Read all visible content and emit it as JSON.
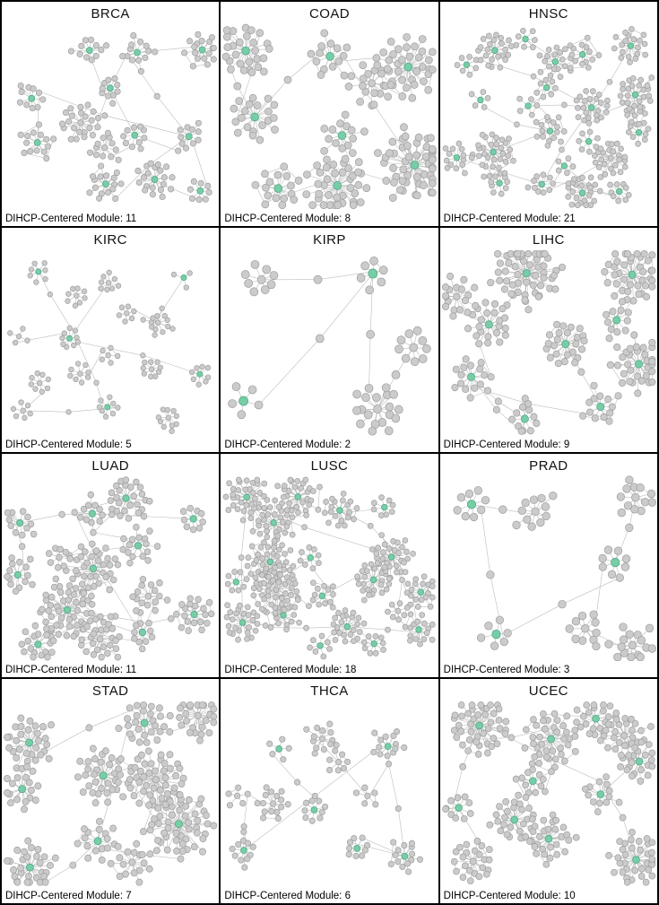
{
  "figure": {
    "caption_label": "DIHCP-Centered Module:",
    "colors": {
      "background": "#ffffff",
      "panel_border": "#000000",
      "node_fill": "#cbcbcb",
      "node_stroke": "#9e9e9e",
      "hub_fill": "#77cda6",
      "hub_stroke": "#4aa583",
      "edge": "#bdbdbd"
    },
    "panels": [
      {
        "title": "BRCA",
        "module_count": 11,
        "net": {
          "nodes": 185,
          "clusters": 13,
          "r": 3.2,
          "density": 0.45,
          "seed": 101
        }
      },
      {
        "title": "COAD",
        "module_count": 8,
        "net": {
          "nodes": 240,
          "clusters": 9,
          "r": 4.0,
          "density": 0.6,
          "seed": 202
        }
      },
      {
        "title": "HNSC",
        "module_count": 21,
        "net": {
          "nodes": 340,
          "clusters": 23,
          "r": 3.0,
          "density": 0.7,
          "seed": 303
        }
      },
      {
        "title": "KIRC",
        "module_count": 5,
        "net": {
          "nodes": 135,
          "clusters": 16,
          "r": 2.8,
          "density": 0.3,
          "seed": 404
        }
      },
      {
        "title": "KIRP",
        "module_count": 2,
        "net": {
          "nodes": 52,
          "clusters": 5,
          "r": 4.5,
          "density": 0.3,
          "seed": 505
        }
      },
      {
        "title": "LIHC",
        "module_count": 9,
        "net": {
          "nodes": 250,
          "clusters": 10,
          "r": 3.7,
          "density": 0.65,
          "seed": 606
        }
      },
      {
        "title": "LUAD",
        "module_count": 11,
        "net": {
          "nodes": 285,
          "clusters": 14,
          "r": 3.4,
          "density": 0.6,
          "seed": 707
        }
      },
      {
        "title": "LUSC",
        "module_count": 18,
        "net": {
          "nodes": 430,
          "clusters": 20,
          "r": 3.0,
          "density": 0.8,
          "seed": 808
        }
      },
      {
        "title": "PRAD",
        "module_count": 3,
        "net": {
          "nodes": 78,
          "clusters": 7,
          "r": 4.3,
          "density": 0.3,
          "seed": 909
        }
      },
      {
        "title": "STAD",
        "module_count": 7,
        "net": {
          "nodes": 300,
          "clusters": 10,
          "r": 3.6,
          "density": 0.65,
          "seed": 1010
        }
      },
      {
        "title": "THCA",
        "module_count": 6,
        "net": {
          "nodes": 118,
          "clusters": 11,
          "r": 3.2,
          "density": 0.3,
          "seed": 1111
        }
      },
      {
        "title": "UCEC",
        "module_count": 10,
        "net": {
          "nodes": 310,
          "clusters": 12,
          "r": 3.5,
          "density": 0.65,
          "seed": 1212
        }
      }
    ]
  }
}
